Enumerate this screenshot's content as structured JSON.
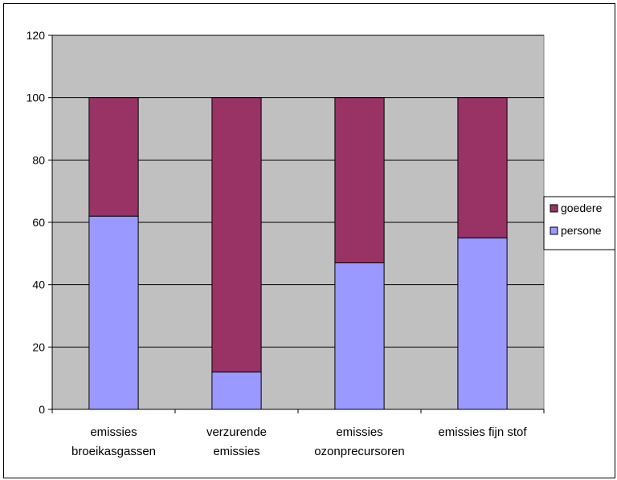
{
  "chart_data": {
    "type": "bar",
    "stacked": true,
    "categories": [
      [
        "emissies",
        "broeikasgassen"
      ],
      [
        "verzurende",
        "emissies"
      ],
      [
        "emissies",
        "ozonprecursoren"
      ],
      [
        "emissies fijn stof"
      ]
    ],
    "series": [
      {
        "name": "personenvervoer",
        "legend_label": "persone",
        "color": "#9999ff",
        "values": [
          62,
          12,
          47,
          55
        ]
      },
      {
        "name": "goederenvervoer",
        "legend_label": "goedere",
        "color": "#993366",
        "values": [
          38,
          88,
          53,
          45
        ]
      }
    ],
    "ylim": [
      0,
      120
    ],
    "yticks": [
      0,
      20,
      40,
      60,
      80,
      100,
      120
    ],
    "grid": true,
    "plot_background": "#c0c0c0",
    "legend_position": "right",
    "title": "",
    "xlabel": "",
    "ylabel": ""
  }
}
